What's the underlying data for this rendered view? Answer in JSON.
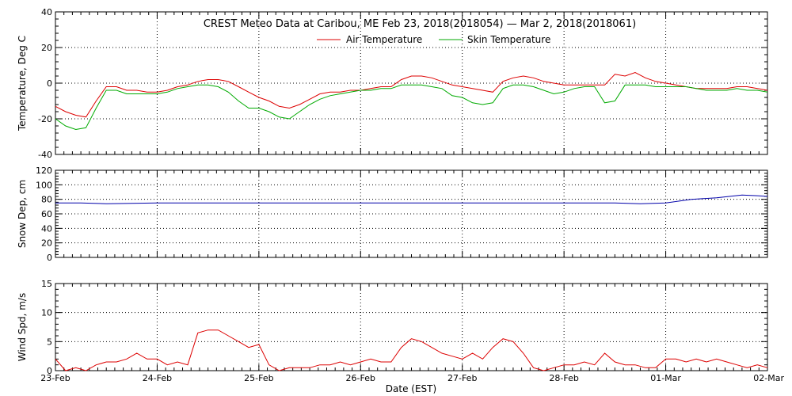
{
  "title": "CREST Meteo Data at Caribou, ME   Feb 23, 2018(2018054) — Mar  2, 2018(2018061)",
  "xlabel": "Date (EST)",
  "colors": {
    "air": "#dd0000",
    "skin": "#00aa00",
    "snow": "#0000aa",
    "wind": "#dd0000",
    "axis": "#000000",
    "background": "#ffffff"
  },
  "chart_data": [
    {
      "type": "line",
      "ylabel": "Temperature, Deg C",
      "ylim": [
        -40,
        40
      ],
      "yticks": [
        "-40",
        "-20",
        "0",
        "20",
        "40"
      ],
      "ytick_values": [
        -40,
        -20,
        0,
        20,
        40
      ],
      "xlim": [
        0,
        7
      ],
      "xticks": [
        "23-Feb",
        "24-Feb",
        "25-Feb",
        "26-Feb",
        "27-Feb",
        "28-Feb",
        "01-Mar",
        "02-Mar"
      ],
      "grid": true,
      "legend": "top-center",
      "x": [
        0,
        0.1,
        0.2,
        0.3,
        0.4,
        0.5,
        0.6,
        0.7,
        0.8,
        0.9,
        1.0,
        1.1,
        1.2,
        1.3,
        1.4,
        1.5,
        1.6,
        1.7,
        1.8,
        1.9,
        2.0,
        2.1,
        2.2,
        2.3,
        2.4,
        2.5,
        2.6,
        2.7,
        2.8,
        2.9,
        3.0,
        3.1,
        3.2,
        3.3,
        3.4,
        3.5,
        3.6,
        3.7,
        3.8,
        3.9,
        4.0,
        4.1,
        4.2,
        4.3,
        4.4,
        4.5,
        4.6,
        4.7,
        4.8,
        4.9,
        5.0,
        5.1,
        5.2,
        5.3,
        5.4,
        5.5,
        5.6,
        5.7,
        5.8,
        5.9,
        6.0,
        6.1,
        6.2,
        6.3,
        6.4,
        6.5,
        6.6,
        6.7,
        6.8,
        6.9,
        7.0
      ],
      "series": [
        {
          "name": "Air Temperature",
          "color": "#dd0000",
          "values": [
            -13,
            -16,
            -18,
            -19,
            -10,
            -2,
            -2,
            -4,
            -4,
            -5,
            -5,
            -4,
            -2,
            -1,
            1,
            2,
            2,
            1,
            -2,
            -5,
            -8,
            -10,
            -13,
            -14,
            -12,
            -9,
            -6,
            -5,
            -5,
            -4,
            -4,
            -3,
            -2,
            -2,
            2,
            4,
            4,
            3,
            1,
            -1,
            -2,
            -3,
            -4,
            -5,
            1,
            3,
            4,
            3,
            1,
            0,
            -1,
            -1,
            -1,
            -1,
            -1,
            5,
            4,
            6,
            3,
            1,
            0,
            -1,
            -2,
            -3,
            -3,
            -3,
            -3,
            -2,
            -2,
            -3,
            -4
          ]
        },
        {
          "name": "Skin Temperature",
          "color": "#00aa00",
          "values": [
            -20,
            -24,
            -26,
            -25,
            -14,
            -4,
            -4,
            -6,
            -6,
            -6,
            -6,
            -5,
            -3,
            -2,
            -1,
            -1,
            -2,
            -5,
            -10,
            -14,
            -14,
            -16,
            -19,
            -20,
            -16,
            -12,
            -9,
            -7,
            -6,
            -5,
            -4,
            -4,
            -3,
            -3,
            -1,
            -1,
            -1,
            -2,
            -3,
            -7,
            -8,
            -11,
            -12,
            -11,
            -3,
            -1,
            -1,
            -2,
            -4,
            -6,
            -5,
            -3,
            -2,
            -2,
            -11,
            -10,
            -1,
            -1,
            -1,
            -2,
            -2,
            -2,
            -2,
            -3,
            -4,
            -4,
            -4,
            -3,
            -4,
            -4,
            -5
          ]
        }
      ]
    },
    {
      "type": "line",
      "ylabel": "Snow Dep, cm",
      "ylim": [
        0,
        120
      ],
      "yticks": [
        "0",
        "20",
        "40",
        "60",
        "80",
        "100",
        "120"
      ],
      "ytick_values": [
        0,
        20,
        40,
        60,
        80,
        100,
        120
      ],
      "xlim": [
        0,
        7
      ],
      "xticks": [
        "23-Feb",
        "24-Feb",
        "25-Feb",
        "26-Feb",
        "27-Feb",
        "28-Feb",
        "01-Mar",
        "02-Mar"
      ],
      "grid": true,
      "x": [
        0,
        0.25,
        0.5,
        1.0,
        1.5,
        2.0,
        2.5,
        3.0,
        3.5,
        4.0,
        4.5,
        5.0,
        5.25,
        5.5,
        5.75,
        6.0,
        6.25,
        6.5,
        6.75,
        6.9,
        7.0
      ],
      "series": [
        {
          "name": "",
          "color": "#0000aa",
          "values": [
            75,
            75,
            74,
            75,
            75,
            75,
            75,
            75,
            75,
            75,
            75,
            75,
            75,
            75,
            74,
            75,
            80,
            82,
            86,
            85,
            84
          ]
        }
      ]
    },
    {
      "type": "line",
      "ylabel": "Wind Spd, m/s",
      "ylim": [
        0,
        15
      ],
      "yticks": [
        "0",
        "5",
        "10",
        "15"
      ],
      "ytick_values": [
        0,
        5,
        10,
        15
      ],
      "xlim": [
        0,
        7
      ],
      "xticks": [
        "23-Feb",
        "24-Feb",
        "25-Feb",
        "26-Feb",
        "27-Feb",
        "28-Feb",
        "01-Mar",
        "02-Mar"
      ],
      "grid": true,
      "x": [
        0,
        0.1,
        0.2,
        0.3,
        0.4,
        0.5,
        0.6,
        0.7,
        0.8,
        0.9,
        1.0,
        1.1,
        1.2,
        1.3,
        1.4,
        1.5,
        1.6,
        1.7,
        1.8,
        1.9,
        2.0,
        2.1,
        2.2,
        2.3,
        2.4,
        2.5,
        2.6,
        2.7,
        2.8,
        2.9,
        3.0,
        3.1,
        3.2,
        3.3,
        3.4,
        3.5,
        3.6,
        3.7,
        3.8,
        3.9,
        4.0,
        4.1,
        4.2,
        4.3,
        4.4,
        4.5,
        4.6,
        4.7,
        4.8,
        4.9,
        5.0,
        5.1,
        5.2,
        5.3,
        5.4,
        5.5,
        5.6,
        5.7,
        5.8,
        5.9,
        6.0,
        6.1,
        6.2,
        6.3,
        6.4,
        6.5,
        6.6,
        6.7,
        6.8,
        6.9,
        7.0
      ],
      "series": [
        {
          "name": "",
          "color": "#dd0000",
          "values": [
            2,
            0,
            0.5,
            0,
            1,
            1.5,
            1.5,
            2,
            3,
            2,
            2,
            1,
            1.5,
            1,
            6.5,
            7,
            7,
            6,
            5,
            4,
            4.5,
            1,
            0,
            0.5,
            0.5,
            0.5,
            1,
            1,
            1.5,
            1,
            1.5,
            2,
            1.5,
            1.5,
            4,
            5.5,
            5,
            4,
            3,
            2.5,
            2,
            3,
            2,
            4,
            5.5,
            5,
            3,
            0.5,
            0,
            0.5,
            1,
            1,
            1.5,
            1,
            3,
            1.5,
            1,
            1,
            0.5,
            0.5,
            2,
            2,
            1.5,
            2,
            1.5,
            2,
            1.5,
            1,
            0.5,
            1,
            0.5
          ]
        }
      ]
    }
  ]
}
